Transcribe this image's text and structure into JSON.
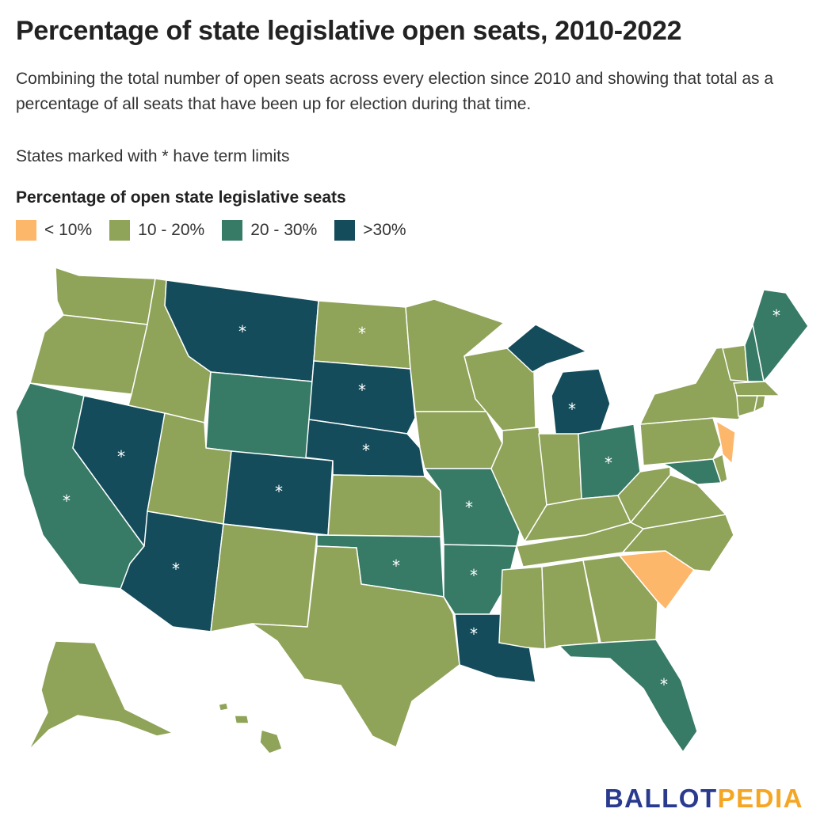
{
  "title": "Percentage of state legislative open seats, 2010-2022",
  "subtitle": "Combining the total number of open seats across every election since 2010 and showing that total as a percentage of all seats that have been up for election during that time.",
  "note": "States marked with * have term limits",
  "legend": {
    "title": "Percentage of open state legislative seats",
    "items": [
      {
        "label": "< 10%",
        "color": "#fdb76b"
      },
      {
        "label": "10 - 20%",
        "color": "#8fa359"
      },
      {
        "label": "20 - 30%",
        "color": "#377a66"
      },
      {
        "label": ">30%",
        "color": "#144c5b"
      }
    ]
  },
  "term_limit_marker": "*",
  "states": {
    "WA": {
      "bin": "10-20",
      "term_limits": false
    },
    "OR": {
      "bin": "10-20",
      "term_limits": false
    },
    "CA": {
      "bin": "20-30",
      "term_limits": true
    },
    "NV": {
      "bin": ">30",
      "term_limits": true
    },
    "ID": {
      "bin": "10-20",
      "term_limits": false
    },
    "MT": {
      "bin": ">30",
      "term_limits": true
    },
    "WY": {
      "bin": "20-30",
      "term_limits": false
    },
    "UT": {
      "bin": "10-20",
      "term_limits": false
    },
    "AZ": {
      "bin": ">30",
      "term_limits": true
    },
    "CO": {
      "bin": ">30",
      "term_limits": true
    },
    "NM": {
      "bin": "10-20",
      "term_limits": false
    },
    "ND": {
      "bin": "10-20",
      "term_limits": true
    },
    "SD": {
      "bin": ">30",
      "term_limits": true
    },
    "NE": {
      "bin": ">30",
      "term_limits": true
    },
    "KS": {
      "bin": "10-20",
      "term_limits": false
    },
    "OK": {
      "bin": "20-30",
      "term_limits": true
    },
    "TX": {
      "bin": "10-20",
      "term_limits": false
    },
    "MN": {
      "bin": "10-20",
      "term_limits": false
    },
    "IA": {
      "bin": "10-20",
      "term_limits": false
    },
    "MO": {
      "bin": "20-30",
      "term_limits": true
    },
    "AR": {
      "bin": "20-30",
      "term_limits": true
    },
    "LA": {
      "bin": ">30",
      "term_limits": true
    },
    "WI": {
      "bin": "10-20",
      "term_limits": false
    },
    "IL": {
      "bin": "10-20",
      "term_limits": false
    },
    "MI": {
      "bin": ">30",
      "term_limits": true
    },
    "IN": {
      "bin": "10-20",
      "term_limits": false
    },
    "OH": {
      "bin": "20-30",
      "term_limits": true
    },
    "KY": {
      "bin": "10-20",
      "term_limits": false
    },
    "TN": {
      "bin": "10-20",
      "term_limits": false
    },
    "MS": {
      "bin": "10-20",
      "term_limits": false
    },
    "AL": {
      "bin": "10-20",
      "term_limits": false
    },
    "GA": {
      "bin": "10-20",
      "term_limits": false
    },
    "FL": {
      "bin": "20-30",
      "term_limits": true
    },
    "SC": {
      "bin": "<10",
      "term_limits": false
    },
    "NC": {
      "bin": "10-20",
      "term_limits": false
    },
    "VA": {
      "bin": "10-20",
      "term_limits": false
    },
    "WV": {
      "bin": "10-20",
      "term_limits": false
    },
    "PA": {
      "bin": "10-20",
      "term_limits": false
    },
    "NY": {
      "bin": "10-20",
      "term_limits": false
    },
    "VT": {
      "bin": "10-20",
      "term_limits": false
    },
    "NH": {
      "bin": "20-30",
      "term_limits": false
    },
    "ME": {
      "bin": "20-30",
      "term_limits": true
    },
    "MA": {
      "bin": "10-20",
      "term_limits": false
    },
    "RI": {
      "bin": "10-20",
      "term_limits": false
    },
    "CT": {
      "bin": "10-20",
      "term_limits": false
    },
    "NJ": {
      "bin": "<10",
      "term_limits": false
    },
    "DE": {
      "bin": "10-20",
      "term_limits": false
    },
    "MD": {
      "bin": "20-30",
      "term_limits": false
    },
    "AK": {
      "bin": "10-20",
      "term_limits": false
    },
    "HI": {
      "bin": "10-20",
      "term_limits": false
    }
  },
  "logo": {
    "part1": "BALLOT",
    "part2": "PEDIA",
    "color1": "#2a3b8f",
    "color2": "#f5a623"
  }
}
